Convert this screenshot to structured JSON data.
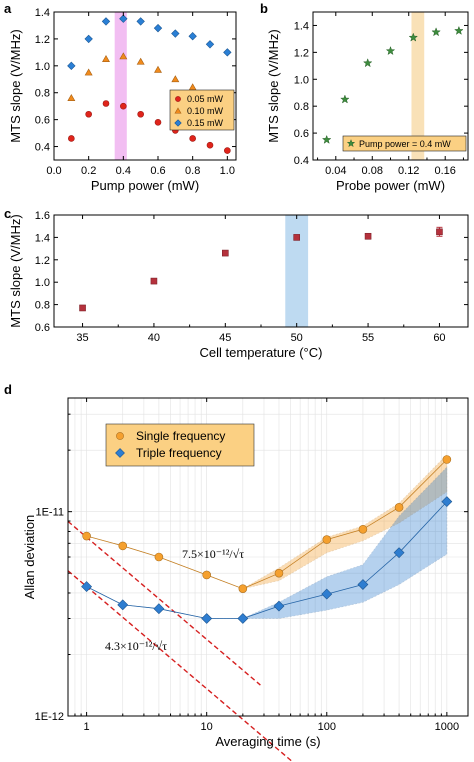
{
  "chart_data": [
    {
      "panel_label": "a",
      "type": "scatter",
      "xlabel": "Pump power (mW)",
      "ylabel": "MTS slope (V/MHz)",
      "xlim": [
        0.0,
        1.05
      ],
      "ylim": [
        0.3,
        1.4
      ],
      "xticks": [
        "0.0",
        "0.2",
        "0.4",
        "0.6",
        "0.8",
        "1.0"
      ],
      "yticks": [
        "0.4",
        "0.6",
        "0.8",
        "1.0",
        "1.2",
        "1.4"
      ],
      "highlight_band": {
        "x": [
          0.35,
          0.42
        ],
        "color": "#f0b3f0"
      },
      "legend_position": "right",
      "series": [
        {
          "name": "0.05 mW",
          "marker": "circle",
          "color": "#e0241b",
          "x": [
            0.1,
            0.2,
            0.3,
            0.4,
            0.5,
            0.6,
            0.7,
            0.8,
            0.9,
            1.0
          ],
          "y": [
            0.46,
            0.64,
            0.72,
            0.7,
            0.64,
            0.58,
            0.52,
            0.46,
            0.41,
            0.37
          ]
        },
        {
          "name": "0.10 mW",
          "marker": "triangle",
          "color": "#f08a1c",
          "x": [
            0.1,
            0.2,
            0.3,
            0.4,
            0.5,
            0.6,
            0.7,
            0.8,
            0.9,
            1.0
          ],
          "y": [
            0.76,
            0.95,
            1.05,
            1.07,
            1.03,
            0.97,
            0.9,
            0.84,
            0.78,
            0.72
          ]
        },
        {
          "name": "0.15 mW",
          "marker": "diamond",
          "color": "#2a7fd5",
          "x": [
            0.1,
            0.2,
            0.3,
            0.4,
            0.5,
            0.6,
            0.7,
            0.8,
            0.9,
            1.0
          ],
          "y": [
            1.0,
            1.2,
            1.33,
            1.35,
            1.33,
            1.28,
            1.24,
            1.22,
            1.16,
            1.1
          ]
        }
      ]
    },
    {
      "panel_label": "b",
      "type": "scatter",
      "xlabel": "Probe power (mW)",
      "ylabel": "MTS slope (V/MHz)",
      "xlim": [
        0.015,
        0.185
      ],
      "ylim": [
        0.4,
        1.5
      ],
      "xticks": [
        "0.04",
        "0.08",
        "0.12",
        "0.16"
      ],
      "yticks": [
        "0.4",
        "0.6",
        "0.8",
        "1.0",
        "1.2",
        "1.4"
      ],
      "highlight_band": {
        "x": [
          0.123,
          0.137
        ],
        "color": "#f8dcaa"
      },
      "legend_position": "bottom-right",
      "series": [
        {
          "name": "Pump power = 0.4 mW",
          "marker": "star",
          "color": "#3d8c3d",
          "x": [
            0.03,
            0.05,
            0.075,
            0.1,
            0.125,
            0.15,
            0.175
          ],
          "y": [
            0.55,
            0.85,
            1.12,
            1.21,
            1.31,
            1.35,
            1.36
          ]
        }
      ]
    },
    {
      "panel_label": "c",
      "type": "scatter",
      "xlabel": "Cell temperature (°C)",
      "ylabel": "MTS slope (V/MHz)",
      "xlim": [
        33,
        62
      ],
      "ylim": [
        0.6,
        1.6
      ],
      "xticks": [
        "35",
        "40",
        "45",
        "50",
        "55",
        "60"
      ],
      "yticks": [
        "0.6",
        "0.8",
        "1.0",
        "1.2",
        "1.4",
        "1.6"
      ],
      "highlight_band": {
        "x": [
          49.2,
          50.8
        ],
        "color": "#b3d4ee"
      },
      "series": [
        {
          "name": "",
          "marker": "square",
          "color": "#b5313c",
          "x": [
            35,
            40,
            45,
            50,
            55,
            60
          ],
          "y": [
            0.77,
            1.01,
            1.26,
            1.4,
            1.41,
            1.45
          ],
          "yerr": [
            0.02,
            0.02,
            0.02,
            0.02,
            0.02,
            0.04
          ]
        }
      ]
    },
    {
      "panel_label": "d",
      "type": "line",
      "xlabel": "Averaging time (s)",
      "ylabel": "Allan deviation",
      "xscale": "log",
      "yscale": "log",
      "xlim": [
        0.7,
        1500
      ],
      "ylim": [
        1e-12,
        3.6e-11
      ],
      "xticks": [
        "1",
        "10",
        "100",
        "1000"
      ],
      "yticks": [
        "1E-12",
        "1E-11"
      ],
      "legend_position": "top-left",
      "series": [
        {
          "name": "Single frequency",
          "marker": "circle",
          "color": "#f5a02e",
          "x": [
            1,
            2,
            4,
            10,
            20,
            40,
            100,
            200,
            400,
            1000
          ],
          "y": [
            7.6e-12,
            6.8e-12,
            6e-12,
            4.9e-12,
            4.2e-12,
            5e-12,
            7.3e-12,
            8.2e-12,
            1.05e-11,
            1.8e-11
          ],
          "band_lower": [
            7.6e-12,
            6.8e-12,
            6e-12,
            4.9e-12,
            4.2e-12,
            4.6e-12,
            6.3e-12,
            7.2e-12,
            8.8e-12,
            1.25e-11
          ],
          "band_upper": [
            7.6e-12,
            6.8e-12,
            6e-12,
            4.9e-12,
            4.2e-12,
            5.3e-12,
            7.5e-12,
            8.5e-12,
            1.1e-11,
            1.9e-11
          ]
        },
        {
          "name": "Triple frequency",
          "marker": "diamond",
          "color": "#2e7dd0",
          "x": [
            1,
            2,
            4,
            10,
            20,
            40,
            100,
            200,
            400,
            1000
          ],
          "y": [
            4.3e-12,
            3.5e-12,
            3.35e-12,
            3e-12,
            3e-12,
            3.45e-12,
            3.95e-12,
            4.4e-12,
            6.3e-12,
            1.12e-11
          ],
          "band_lower": [
            4.3e-12,
            3.5e-12,
            3.35e-12,
            3e-12,
            3e-12,
            3e-12,
            3.3e-12,
            3.6e-12,
            4.4e-12,
            6.2e-12
          ],
          "band_upper": [
            4.3e-12,
            3.5e-12,
            3.35e-12,
            3e-12,
            3e-12,
            3.6e-12,
            4.8e-12,
            5.5e-12,
            9.5e-12,
            1.65e-11
          ]
        }
      ],
      "fit_lines": [
        {
          "label": "7.5×10⁻¹²/√τ",
          "coefficient": 7.5e-12,
          "x_range": [
            0.7,
            28
          ],
          "color": "#d62020"
        },
        {
          "label": "4.3×10⁻¹²/√τ",
          "coefficient": 4.3e-12,
          "x_range": [
            0.7,
            55
          ],
          "color": "#d62020"
        }
      ]
    }
  ]
}
